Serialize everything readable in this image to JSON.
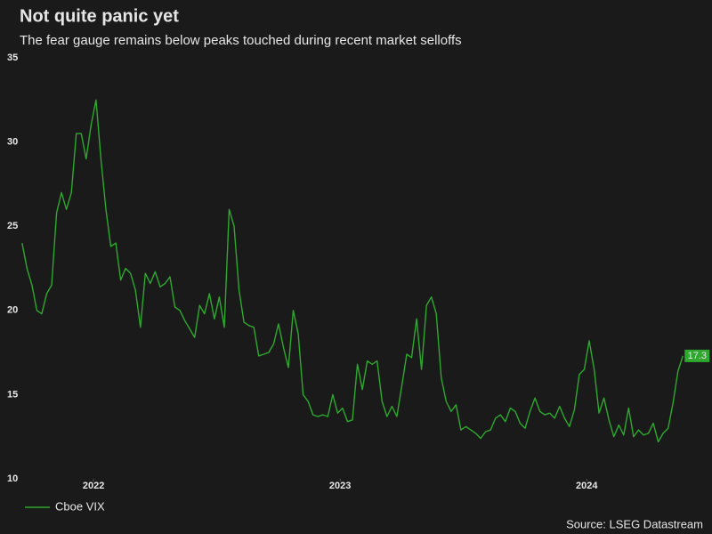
{
  "chart_data": {
    "type": "line",
    "title": "Not quite panic yet",
    "subtitle": "The fear gauge remains below peaks touched during recent market selloffs",
    "source": "Source: LSEG Datastream",
    "x": [
      2021.71,
      2021.73,
      2021.75,
      2021.77,
      2021.79,
      2021.81,
      2021.83,
      2021.85,
      2021.87,
      2021.89,
      2021.91,
      2021.93,
      2021.95,
      2021.97,
      2021.99,
      2022.01,
      2022.03,
      2022.05,
      2022.07,
      2022.09,
      2022.11,
      2022.13,
      2022.15,
      2022.17,
      2022.19,
      2022.21,
      2022.23,
      2022.25,
      2022.27,
      2022.29,
      2022.31,
      2022.33,
      2022.35,
      2022.37,
      2022.39,
      2022.41,
      2022.43,
      2022.45,
      2022.47,
      2022.49,
      2022.51,
      2022.53,
      2022.55,
      2022.57,
      2022.59,
      2022.61,
      2022.63,
      2022.65,
      2022.67,
      2022.69,
      2022.71,
      2022.73,
      2022.75,
      2022.77,
      2022.79,
      2022.81,
      2022.83,
      2022.85,
      2022.87,
      2022.89,
      2022.91,
      2022.93,
      2022.95,
      2022.97,
      2022.99,
      2023.01,
      2023.03,
      2023.05,
      2023.07,
      2023.09,
      2023.11,
      2023.13,
      2023.15,
      2023.17,
      2023.19,
      2023.21,
      2023.23,
      2023.25,
      2023.27,
      2023.29,
      2023.31,
      2023.33,
      2023.35,
      2023.37,
      2023.39,
      2023.41,
      2023.43,
      2023.45,
      2023.47,
      2023.49,
      2023.51,
      2023.53,
      2023.55,
      2023.57,
      2023.59,
      2023.61,
      2023.63,
      2023.65,
      2023.67,
      2023.69,
      2023.71,
      2023.73,
      2023.75,
      2023.77,
      2023.79,
      2023.81,
      2023.83,
      2023.85,
      2023.87,
      2023.89,
      2023.91,
      2023.93,
      2023.95,
      2023.97,
      2023.99,
      2024.01,
      2024.03,
      2024.05,
      2024.07,
      2024.09,
      2024.11,
      2024.13,
      2024.15,
      2024.17,
      2024.19,
      2024.21,
      2024.23,
      2024.25,
      2024.27,
      2024.29,
      2024.31,
      2024.33,
      2024.35,
      2024.37,
      2024.39
    ],
    "series": [
      {
        "name": "Cboe VIX",
        "color": "#2ea82e",
        "values": [
          24,
          22.5,
          21.5,
          20,
          19.8,
          21,
          21.5,
          25.8,
          27,
          26,
          27,
          30.5,
          30.5,
          29,
          31,
          32.5,
          29,
          26,
          23.8,
          24,
          21.8,
          22.5,
          22.2,
          21.2,
          19,
          22.2,
          21.6,
          22.3,
          21.4,
          21.6,
          22,
          20.2,
          20,
          19.4,
          18.9,
          18.4,
          20.3,
          19.8,
          21,
          19.5,
          20.8,
          19,
          26,
          25,
          21.2,
          19.3,
          19.1,
          19,
          17.3,
          17.4,
          17.5,
          18,
          19.2,
          17.8,
          16.6,
          20,
          18.6,
          15,
          14.6,
          13.8,
          13.7,
          13.8,
          13.7,
          15,
          13.9,
          14.2,
          13.4,
          13.5,
          16.8,
          15.3,
          17,
          16.8,
          17,
          14.6,
          13.7,
          14.3,
          13.7,
          15.5,
          17.4,
          17.2,
          19.5,
          16.5,
          20.3,
          20.8,
          19.8,
          16,
          14.6,
          14,
          14.4,
          12.9,
          13.1,
          12.9,
          12.7,
          12.4,
          12.8,
          12.9,
          13.6,
          13.8,
          13.4,
          14.2,
          14,
          13.3,
          13,
          14,
          14.8,
          14,
          13.8,
          13.9,
          13.6,
          14.3,
          13.6,
          13.1,
          14.1,
          16.2,
          16.5,
          18.2,
          16.5,
          13.9,
          14.8,
          13.5,
          12.5,
          13.2,
          12.6,
          14.2,
          12.5,
          12.9,
          12.6,
          12.7,
          13.3,
          12.2,
          12.7,
          13,
          14.5,
          16.4,
          17.3
        ]
      }
    ],
    "xlim": [
      2021.7,
      2024.49
    ],
    "xticks": [
      2022,
      2023,
      2024
    ],
    "ylim": [
      10,
      35
    ],
    "yticks": [
      10,
      15,
      20,
      25,
      30,
      35
    ],
    "grid": false,
    "legend": "bottom-left"
  }
}
